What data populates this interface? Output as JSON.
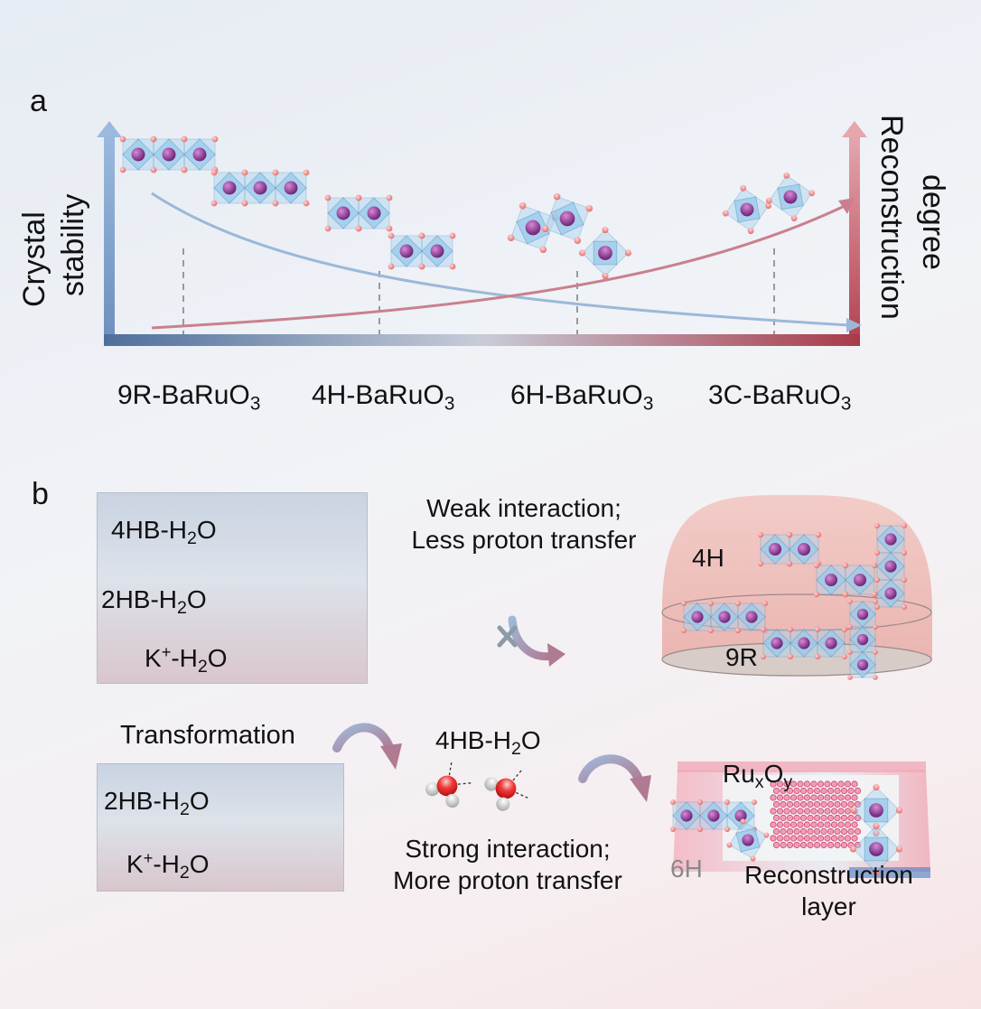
{
  "panel_a": {
    "label": "a",
    "y_left_label_line1": "Crystal",
    "y_left_label_line2": "stability",
    "y_right_label_line1": "Reconstruction",
    "y_right_label_line2": "degree",
    "phases": [
      {
        "pre": "9R-BaRuO",
        "sub": "3"
      },
      {
        "pre": "4H-BaRuO",
        "sub": "3"
      },
      {
        "pre": "6H-BaRuO",
        "sub": "3"
      },
      {
        "pre": "3C-BaRuO",
        "sub": "3"
      }
    ],
    "colors": {
      "stability": "#8fb0d4",
      "reconstruction": "#c0606e"
    }
  },
  "panel_b": {
    "label": "b",
    "box1": [
      {
        "pre": "4HB-H",
        "sub": "2",
        "post": "O"
      },
      {
        "pre": "2HB-H",
        "sub": "2",
        "post": "O"
      },
      {
        "pre": "K",
        "sup": "+",
        "post": "-H",
        "sub": "2",
        "post2": "O"
      }
    ],
    "weak_line1": "Weak interaction;",
    "weak_line2": "Less proton transfer",
    "dome_top_label": "4H",
    "dome_bottom_label": "9R",
    "transformation": "Transformation",
    "middle_water": {
      "pre": "4HB-H",
      "sub": "2",
      "post": "O"
    },
    "box2": [
      {
        "pre": "2HB-H",
        "sub": "2",
        "post": "O"
      },
      {
        "pre": "K",
        "sup": "+",
        "post": "-H",
        "sub": "2",
        "post2": "O"
      }
    ],
    "strong_line1": "Strong interaction;",
    "strong_line2": "More proton transfer",
    "ruxoy": {
      "pre": "Ru",
      "sub1": "x",
      "mid": "O",
      "sub2": "y"
    },
    "label_6h": "6H",
    "reconstruction_line1": "Reconstruction",
    "reconstruction_line2": "layer",
    "k_ion_label": "K+"
  }
}
